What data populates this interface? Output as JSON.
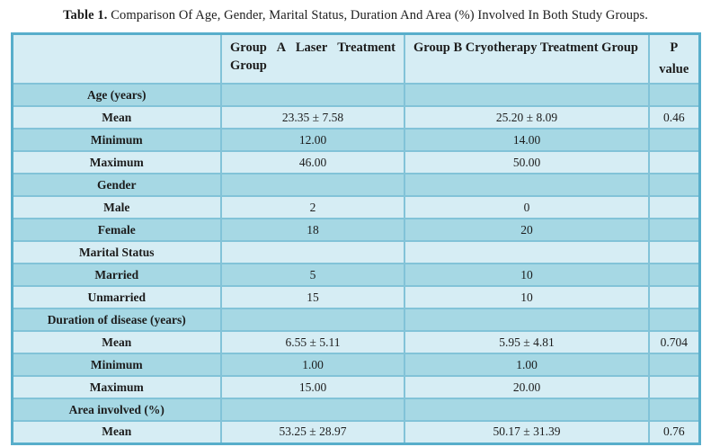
{
  "title": {
    "prefix": "Table 1.",
    "text": " Comparison Of Age, Gender, Marital Status, Duration And Area (%) Involved In Both Study Groups."
  },
  "table": {
    "headers": {
      "label_column": "",
      "group_a": "Group A Laser Treatment Group",
      "group_b": "Group B Cryotherapy Treatment Group",
      "p_value_line1": "P",
      "p_value_line2": "value"
    },
    "rows": [
      {
        "label": "Age (years)",
        "group_a": "",
        "group_b": "",
        "p": ""
      },
      {
        "label": "Mean",
        "group_a": "23.35 ± 7.58",
        "group_b": "25.20 ± 8.09",
        "p": "0.46"
      },
      {
        "label": "Minimum",
        "group_a": "12.00",
        "group_b": "14.00",
        "p": ""
      },
      {
        "label": "Maximum",
        "group_a": "46.00",
        "group_b": "50.00",
        "p": ""
      },
      {
        "label": "Gender",
        "group_a": "",
        "group_b": "",
        "p": ""
      },
      {
        "label": "Male",
        "group_a": "2",
        "group_b": "0",
        "p": ""
      },
      {
        "label": "Female",
        "group_a": "18",
        "group_b": "20",
        "p": ""
      },
      {
        "label": "Marital Status",
        "group_a": "",
        "group_b": "",
        "p": ""
      },
      {
        "label": "Married",
        "group_a": "5",
        "group_b": "10",
        "p": ""
      },
      {
        "label": "Unmarried",
        "group_a": "15",
        "group_b": "10",
        "p": ""
      },
      {
        "label": "Duration of disease (years)",
        "group_a": "",
        "group_b": "",
        "p": ""
      },
      {
        "label": "Mean",
        "group_a": "6.55 ± 5.11",
        "group_b": "5.95 ± 4.81",
        "p": "0.704"
      },
      {
        "label": "Minimum",
        "group_a": "1.00",
        "group_b": "1.00",
        "p": ""
      },
      {
        "label": "Maximum",
        "group_a": "15.00",
        "group_b": "20.00",
        "p": ""
      },
      {
        "label": "Area involved (%)",
        "group_a": "",
        "group_b": "",
        "p": ""
      },
      {
        "label": "Mean",
        "group_a": "53.25 ± 28.97",
        "group_b": "50.17 ± 31.39",
        "p": "0.76"
      }
    ],
    "colors": {
      "row_light": "#d6edf4",
      "row_dark": "#a6d8e4",
      "border_inner": "#82c3d8",
      "border_outer": "#58aecb",
      "text": "#1c1c1c"
    }
  }
}
